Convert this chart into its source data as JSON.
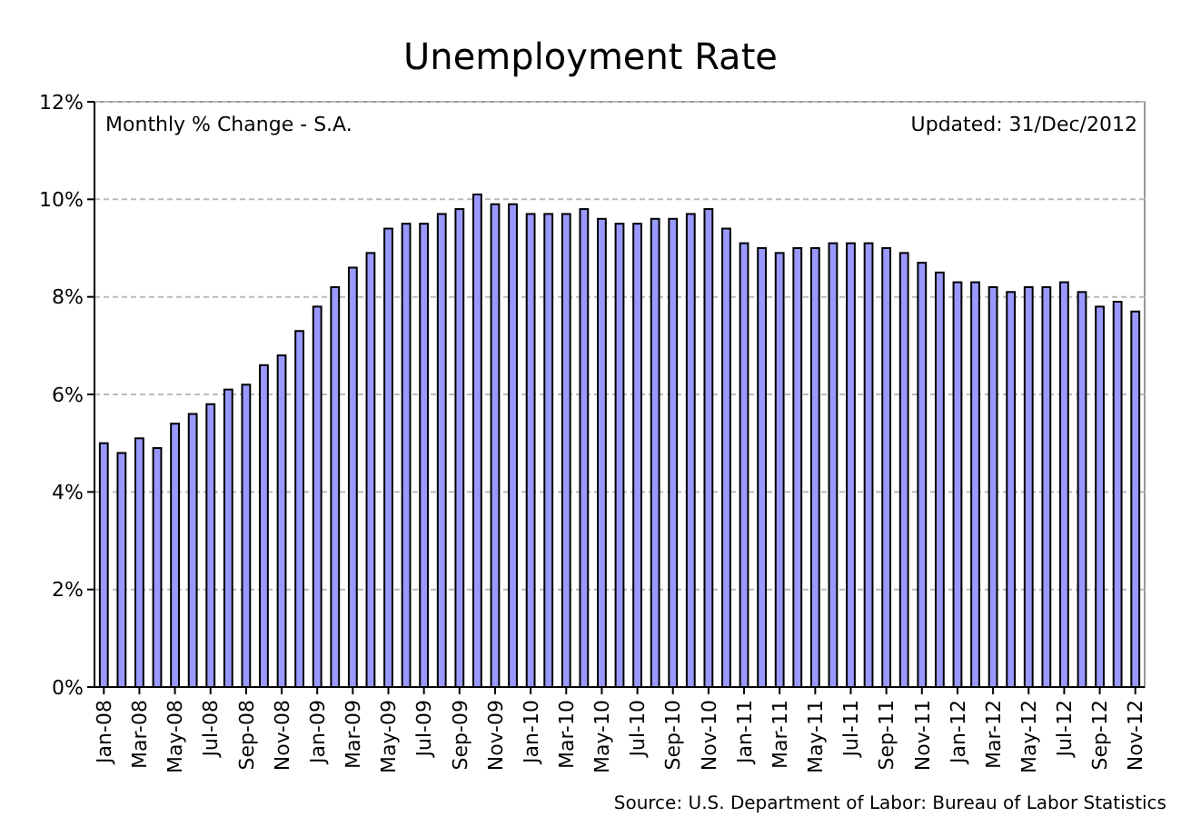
{
  "chart_data": {
    "type": "bar",
    "title": "Unemployment Rate",
    "categories": [
      "Jan-08",
      null,
      "Mar-08",
      null,
      "May-08",
      null,
      "Jul-08",
      null,
      "Sep-08",
      null,
      "Nov-08",
      null,
      "Jan-09",
      null,
      "Mar-09",
      null,
      "May-09",
      null,
      "Jul-09",
      null,
      "Sep-09",
      null,
      "Nov-09",
      null,
      "Jan-10",
      null,
      "Mar-10",
      null,
      "May-10",
      null,
      "Jul-10",
      null,
      "Sep-10",
      null,
      "Nov-10",
      null,
      "Jan-11",
      null,
      "Mar-11",
      null,
      "May-11",
      null,
      "Jul-11",
      null,
      "Sep-11",
      null,
      "Nov-11",
      null,
      "Jan-12",
      null,
      "Mar-12",
      null,
      "May-12",
      null,
      "Jul-12",
      null,
      "Sep-12",
      null,
      "Nov-12"
    ],
    "values": [
      5.0,
      4.8,
      5.1,
      4.9,
      5.4,
      5.6,
      5.8,
      6.1,
      6.2,
      6.6,
      6.8,
      7.3,
      7.8,
      8.2,
      8.6,
      8.9,
      9.4,
      9.5,
      9.5,
      9.7,
      9.8,
      10.1,
      9.9,
      9.9,
      9.7,
      9.7,
      9.7,
      9.8,
      9.6,
      9.5,
      9.5,
      9.6,
      9.6,
      9.7,
      9.8,
      9.4,
      9.1,
      9.0,
      8.9,
      9.0,
      9.0,
      9.1,
      9.1,
      9.1,
      9.0,
      8.9,
      8.7,
      8.5,
      8.3,
      8.3,
      8.2,
      8.1,
      8.2,
      8.2,
      8.3,
      8.1,
      7.8,
      7.9,
      7.7
    ],
    "color": "#9999ff",
    "ylim": [
      0,
      12
    ],
    "yticks": [
      {
        "value": 0,
        "label": "0%"
      },
      {
        "value": 2,
        "label": "2%"
      },
      {
        "value": 4,
        "label": "4%"
      },
      {
        "value": 6,
        "label": "6%"
      },
      {
        "value": 8,
        "label": "8%"
      },
      {
        "value": 10,
        "label": "10%"
      },
      {
        "value": 12,
        "label": "12%"
      }
    ],
    "grid": "y",
    "annotations": [
      "Monthly % Change - S.A.",
      "Updated: 31/Dec/2012",
      "Source: U.S. Department of Labor: Bureau of Labor Statistics"
    ]
  }
}
